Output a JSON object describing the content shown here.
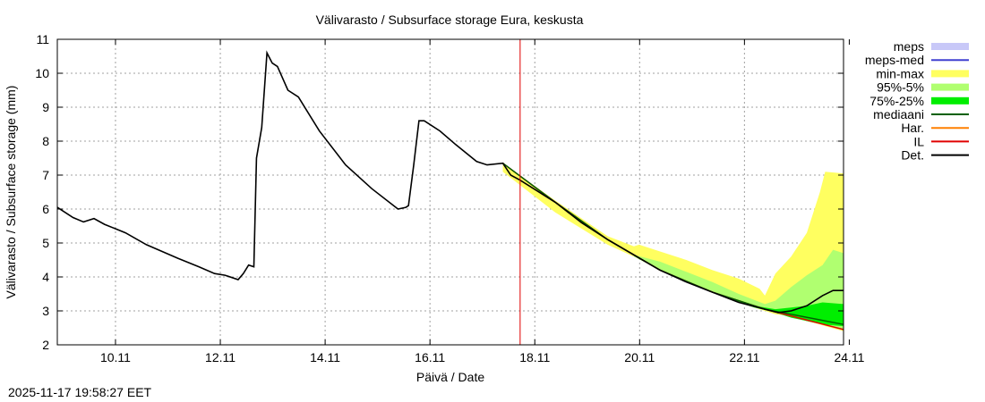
{
  "chart_data": {
    "type": "line",
    "title": "Välivarasto / Subsurface storage  Eura, keskusta",
    "xlabel": "Päivä / Date",
    "ylabel": "Välivarasto / Subsurface storage (mm)",
    "xlim": [
      "9.11",
      "24.11"
    ],
    "ylim": [
      2,
      11
    ],
    "grid": true,
    "legend_position": "right",
    "x_ticks": [
      "10.11",
      "12.11",
      "14.11",
      "16.11",
      "18.11",
      "20.11",
      "22.11",
      "24.11"
    ],
    "y_ticks": [
      "2",
      "3",
      "4",
      "5",
      "6",
      "7",
      "8",
      "9",
      "10",
      "11"
    ],
    "now_marker": {
      "x_day": 17.83,
      "color": "#e00000"
    },
    "legend": [
      {
        "label": "meps",
        "type": "band",
        "color": "#c8c8f8"
      },
      {
        "label": "meps-med",
        "type": "line",
        "color": "#4040d0"
      },
      {
        "label": "min-max",
        "type": "band",
        "color": "#ffff60"
      },
      {
        "label": "95%-5%",
        "type": "band",
        "color": "#b0ff70"
      },
      {
        "label": "75%-25%",
        "type": "band",
        "color": "#00ee00"
      },
      {
        "label": "mediaani",
        "type": "line",
        "color": "#006000"
      },
      {
        "label": "Har.",
        "type": "line",
        "color": "#ff8000"
      },
      {
        "label": "IL",
        "type": "line",
        "color": "#e00000"
      },
      {
        "label": "Det.",
        "type": "line",
        "color": "#000000"
      }
    ],
    "series": [
      {
        "name": "Det.",
        "color": "#000000",
        "x": [
          9.0,
          9.3,
          9.5,
          9.7,
          9.9,
          10.3,
          10.7,
          11.3,
          11.7,
          12.0,
          12.2,
          12.45,
          12.55,
          12.65,
          12.75,
          12.8,
          12.9,
          13.0,
          13.1,
          13.2,
          13.4,
          13.6,
          14.0,
          14.5,
          15.0,
          15.5,
          15.65,
          15.7,
          15.8,
          15.9,
          16.0,
          16.3,
          16.6,
          17.0,
          17.2,
          17.5,
          17.65,
          17.83,
          18.5,
          19.0,
          19.5,
          20.0,
          20.5,
          21.0,
          21.5,
          22.0,
          22.5,
          22.75,
          23.0,
          23.3,
          23.6,
          23.8,
          24.0
        ],
        "y": [
          6.05,
          5.75,
          5.62,
          5.72,
          5.55,
          5.3,
          4.95,
          4.55,
          4.3,
          4.1,
          4.05,
          3.92,
          4.1,
          4.35,
          4.3,
          7.5,
          8.4,
          10.6,
          10.3,
          10.2,
          9.5,
          9.3,
          8.3,
          7.3,
          6.6,
          6.0,
          6.05,
          6.1,
          7.3,
          8.6,
          8.6,
          8.3,
          7.9,
          7.4,
          7.3,
          7.35,
          7.0,
          6.85,
          6.2,
          5.6,
          5.1,
          4.65,
          4.2,
          3.85,
          3.55,
          3.25,
          3.05,
          2.95,
          3.0,
          3.15,
          3.45,
          3.6,
          3.6
        ]
      },
      {
        "name": "IL",
        "color": "#e00000",
        "x": [
          17.5,
          18.5,
          19.5,
          20.5,
          21.5,
          22.5,
          23.0,
          23.5,
          24.0
        ],
        "y": [
          7.35,
          6.2,
          5.1,
          4.2,
          3.55,
          3.05,
          2.85,
          2.65,
          2.45
        ]
      },
      {
        "name": "mediaani",
        "color": "#006000",
        "x": [
          17.5,
          18.5,
          19.5,
          20.5,
          21.5,
          22.5,
          23.0,
          23.5,
          24.0
        ],
        "y": [
          7.35,
          6.2,
          5.1,
          4.2,
          3.55,
          3.05,
          2.9,
          2.75,
          2.6
        ]
      }
    ],
    "bands": [
      {
        "name": "min-max",
        "color": "#ffff60",
        "x": [
          17.5,
          18.5,
          19.5,
          20.0,
          20.1,
          20.5,
          21.0,
          21.5,
          22.0,
          22.4,
          22.5,
          22.7,
          23.0,
          23.3,
          23.55,
          23.65,
          24.0
        ],
        "high": [
          7.35,
          6.25,
          5.2,
          4.9,
          4.95,
          4.75,
          4.5,
          4.2,
          3.95,
          3.65,
          3.45,
          4.1,
          4.6,
          5.3,
          6.5,
          7.1,
          7.05
        ],
        "low": [
          7.1,
          5.9,
          4.95,
          4.6,
          4.55,
          4.2,
          3.85,
          3.55,
          3.25,
          3.05,
          3.0,
          2.9,
          2.85,
          2.7,
          2.6,
          2.55,
          2.4
        ]
      },
      {
        "name": "95%-5%",
        "color": "#b0ff70",
        "x": [
          20.0,
          20.5,
          21.0,
          21.5,
          22.0,
          22.5,
          22.7,
          23.0,
          23.3,
          23.6,
          23.8,
          24.0
        ],
        "high": [
          4.65,
          4.45,
          4.15,
          3.85,
          3.5,
          3.2,
          3.3,
          3.7,
          4.05,
          4.35,
          4.8,
          4.7
        ],
        "low": [
          4.6,
          4.2,
          3.85,
          3.55,
          3.25,
          3.05,
          2.95,
          2.85,
          2.7,
          2.6,
          2.55,
          2.45
        ]
      },
      {
        "name": "75%-25%",
        "color": "#00ee00",
        "x": [
          21.8,
          22.3,
          22.7,
          23.0,
          23.3,
          23.6,
          24.0
        ],
        "high": [
          3.4,
          3.15,
          3.05,
          3.1,
          3.15,
          3.25,
          3.2
        ],
        "low": [
          3.35,
          3.1,
          2.95,
          2.8,
          2.7,
          2.6,
          2.55
        ]
      }
    ]
  },
  "footer": {
    "timestamp": "2025-11-17 19:58:27 EET"
  }
}
